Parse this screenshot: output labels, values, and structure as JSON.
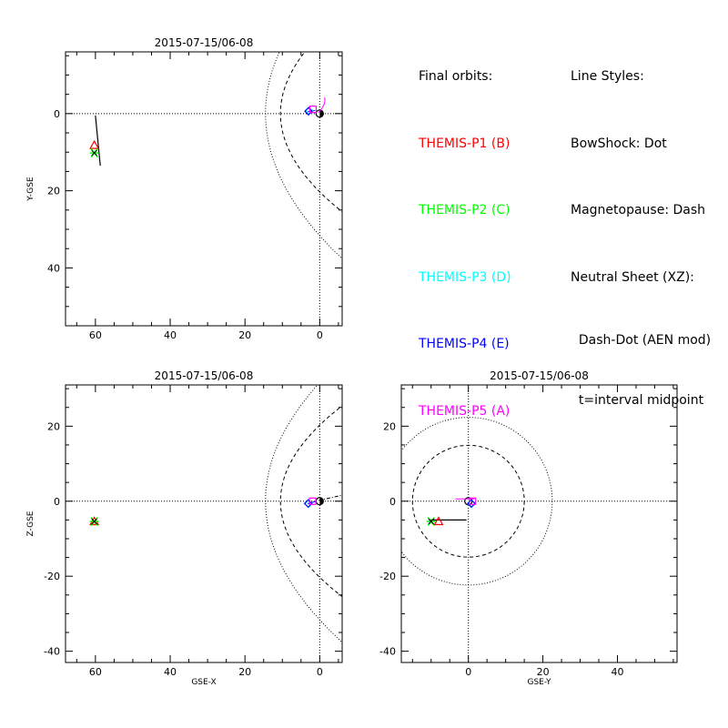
{
  "legend": {
    "orbits_title": "Final orbits:",
    "styles_title": "Line Styles:",
    "probes": [
      {
        "label": "THEMIS-P1 (B)",
        "color": "#ff0000"
      },
      {
        "label": "THEMIS-P2 (C)",
        "color": "#00ff00"
      },
      {
        "label": "THEMIS-P3 (D)",
        "color": "#00ffff"
      },
      {
        "label": "THEMIS-P4 (E)",
        "color": "#0000ff"
      },
      {
        "label": "THEMIS-P5 (A)",
        "color": "#ff00ff"
      }
    ],
    "styles": [
      "BowShock: Dot",
      "Magnetopause: Dash",
      "Neutral Sheet (XZ):",
      "  Dash-Dot (AEN mod)",
      "  t=interval midpoint"
    ]
  },
  "chart_data": [
    {
      "type": "scatter",
      "panel": "xy",
      "title": "2015-07-15/06-08",
      "xlabel": "",
      "ylabel": "Y-GSE",
      "xlim": [
        68,
        -6
      ],
      "ylim": [
        -16,
        55
      ],
      "xticks": [
        60,
        40,
        20,
        0
      ],
      "yticks": [
        0,
        20,
        40
      ],
      "series": [
        {
          "name": "THEMIS-P1 (B)",
          "color": "#ff0000",
          "marker": "triangle",
          "x": [
            60.3
          ],
          "y": [
            8.2
          ]
        },
        {
          "name": "THEMIS-P2 (C)",
          "color": "#00ff00",
          "marker": "asterisk",
          "x": [
            60.3
          ],
          "y": [
            10.2
          ]
        },
        {
          "name": "THEMIS-P3 (D)",
          "color": "#00ffff",
          "marker": "diamond",
          "x": [
            2.9
          ],
          "y": [
            -0.8
          ]
        },
        {
          "name": "THEMIS-P4 (E)",
          "color": "#0000ff",
          "marker": "diamond",
          "x": [
            3.0
          ],
          "y": [
            -0.6
          ]
        },
        {
          "name": "THEMIS-P5 (A)",
          "color": "#ff00ff",
          "marker": "square",
          "x": [
            1.8
          ],
          "y": [
            -1.1
          ]
        }
      ]
    },
    {
      "type": "scatter",
      "panel": "xz",
      "title": "2015-07-15/06-08",
      "xlabel": "GSE-X",
      "ylabel": "Z-GSE",
      "xlim": [
        68,
        -6
      ],
      "ylim": [
        -43,
        31
      ],
      "xticks": [
        60,
        40,
        20,
        0
      ],
      "yticks": [
        20,
        0,
        -20,
        -40
      ],
      "series": [
        {
          "name": "THEMIS-P1 (B)",
          "color": "#ff0000",
          "marker": "triangle",
          "x": [
            60.3
          ],
          "y": [
            -5.4
          ]
        },
        {
          "name": "THEMIS-P2 (C)",
          "color": "#00ff00",
          "marker": "asterisk",
          "x": [
            60.3
          ],
          "y": [
            -5.4
          ]
        },
        {
          "name": "THEMIS-P3 (D)",
          "color": "#00ffff",
          "marker": "diamond",
          "x": [
            3.0
          ],
          "y": [
            -0.7
          ]
        },
        {
          "name": "THEMIS-P4 (E)",
          "color": "#0000ff",
          "marker": "diamond",
          "x": [
            3.1
          ],
          "y": [
            -0.6
          ]
        },
        {
          "name": "THEMIS-P5 (A)",
          "color": "#ff00ff",
          "marker": "square",
          "x": [
            1.9
          ],
          "y": [
            0.0
          ]
        }
      ]
    },
    {
      "type": "scatter",
      "panel": "yz",
      "title": "2015-07-15/06-08",
      "xlabel": "GSE-Y",
      "ylabel": "",
      "xlim": [
        -18,
        56
      ],
      "ylim": [
        -43,
        31
      ],
      "xticks": [
        0,
        20,
        40
      ],
      "yticks": [
        20,
        0,
        -20,
        -40
      ],
      "series": [
        {
          "name": "THEMIS-P1 (B)",
          "color": "#ff0000",
          "marker": "triangle",
          "x": [
            -8.0
          ],
          "y": [
            -5.4
          ]
        },
        {
          "name": "THEMIS-P2 (C)",
          "color": "#00ff00",
          "marker": "asterisk",
          "x": [
            -10.0
          ],
          "y": [
            -5.4
          ]
        },
        {
          "name": "THEMIS-P3 (D)",
          "color": "#00ffff",
          "marker": "diamond",
          "x": [
            0.8
          ],
          "y": [
            -0.7
          ]
        },
        {
          "name": "THEMIS-P4 (E)",
          "color": "#0000ff",
          "marker": "diamond",
          "x": [
            0.8
          ],
          "y": [
            -0.6
          ]
        },
        {
          "name": "THEMIS-P5 (A)",
          "color": "#ff00ff",
          "marker": "square",
          "x": [
            1.1
          ],
          "y": [
            0.0
          ]
        }
      ]
    }
  ]
}
